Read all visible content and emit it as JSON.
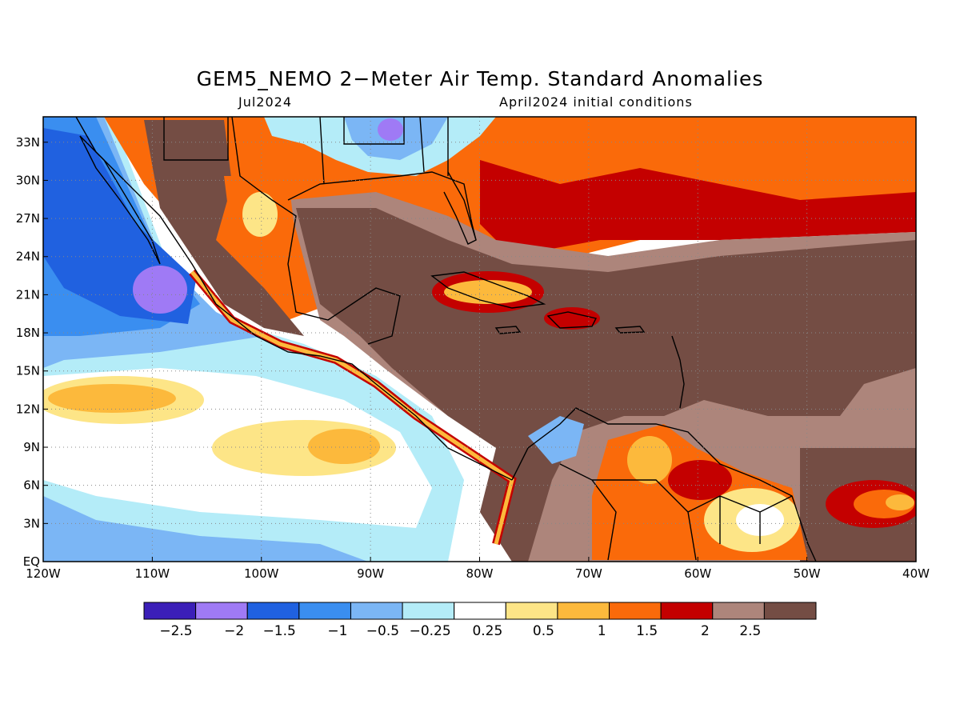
{
  "title": "GEM5_NEMO 2−Meter Air Temp. Standard Anomalies",
  "subtitle_left": "Jul2024",
  "subtitle_right": "April2024 initial conditions",
  "map": {
    "region": "Central America / Caribbean",
    "lon_range": [
      -120,
      -40
    ],
    "lat_range": [
      0,
      35
    ],
    "x_tick_labels": [
      "120W",
      "110W",
      "100W",
      "90W",
      "80W",
      "70W",
      "60W",
      "50W",
      "40W"
    ],
    "y_tick_labels": [
      "EQ",
      "3N",
      "6N",
      "9N",
      "12N",
      "15N",
      "18N",
      "21N",
      "24N",
      "27N",
      "30N",
      "33N"
    ],
    "grid": "dotted"
  },
  "colorbar": {
    "colors": [
      "#3b1fb8",
      "#9f7af5",
      "#2061e0",
      "#3a8ef0",
      "#7bb6f5",
      "#b4ecf8",
      "#ffffff",
      "#fde587",
      "#fcb93c",
      "#fa6a0a",
      "#c40000",
      "#ad857b",
      "#744d44"
    ],
    "labels": [
      "−2.5",
      "−2",
      "−1.5",
      "−1",
      "−0.5",
      "−0.25",
      "0.25",
      "0.5",
      "1",
      "1.5",
      "2",
      "2.5"
    ]
  }
}
